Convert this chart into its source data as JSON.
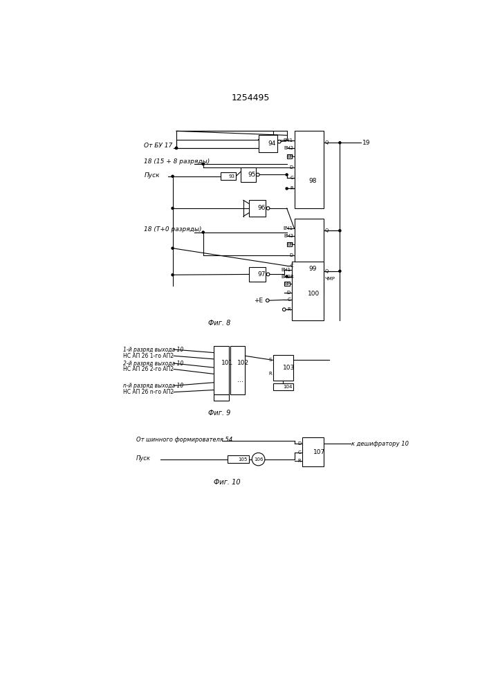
{
  "title": "1254495",
  "bg_color": "#ffffff",
  "fig8_caption": "Фиг. 8",
  "fig9_caption": "Фиг. 9",
  "fig10_caption": "Фиг. 10",
  "label_ot_bu": "От БУ 17",
  "label_18_1": "18 (15 + 8 разряды)",
  "label_pusk": "Пуск",
  "label_18_2": "18 (T+0 разряды)",
  "label_plus_e": "+E",
  "label_19": "19",
  "label_chmp": "ЧМР",
  "b94": "94",
  "b95": "95",
  "b96": "96",
  "b97": "97",
  "b93": "93",
  "b98": "98",
  "b99": "99",
  "b100": "100",
  "label_row1": "1-й разряд выхода 10",
  "label_row2": "НС АП 26 1-го АП2",
  "label_row3": "2-й разряд выхода 10",
  "label_row4": "НС АП 26 2-го АП2",
  "label_row5": "n-й разряд выхода 10",
  "label_row6": "НС АП 26 n-го АП2",
  "b101": "101",
  "b102": "102",
  "b103": "103",
  "b104": "104",
  "label_from54": "От шинного формирователя 54",
  "label_pusk10": "Пуск",
  "label_to107": "к дешифратору 10",
  "b105": "105",
  "b106": "106",
  "b107": "107"
}
